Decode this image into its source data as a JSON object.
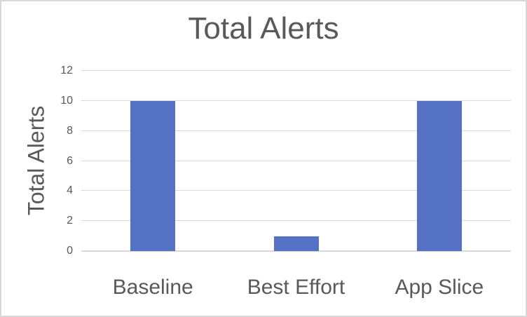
{
  "chart_data": {
    "type": "bar",
    "title": "Total Alerts",
    "xlabel": "",
    "ylabel": "Total Alerts",
    "categories": [
      "Baseline",
      "Best Effort",
      "App Slice"
    ],
    "values": [
      10,
      1,
      10
    ],
    "ylim": [
      0,
      12
    ],
    "yticks": [
      0,
      2,
      4,
      6,
      8,
      10,
      12
    ],
    "grid": "horizontal",
    "legend": "none",
    "colors": {
      "bar": "#5471C4",
      "gridline": "#d9d9d9",
      "text": "#595959",
      "frame_border": "#d9d9d9",
      "background": "#ffffff"
    }
  }
}
